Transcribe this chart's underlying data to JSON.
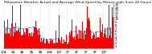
{
  "title": "Milwaukee Weather Actual and Average Wind Speed by Minute mph (Last 24 Hours)",
  "bar_color": "#ff0000",
  "line_color": "#0000ff",
  "background_color": "#ffffff",
  "plot_bg_color": "#ffffff",
  "grid_color": "#bbbbbb",
  "n_points": 1440,
  "ylim": [
    0,
    15
  ],
  "yticks": [
    1,
    2,
    3,
    4,
    5,
    6,
    7,
    8,
    9,
    10,
    11,
    12,
    13,
    14,
    15
  ],
  "ylabel_fontsize": 3.0,
  "title_fontsize": 3.2,
  "xlabel_fontsize": 2.8,
  "line_width": 0.5
}
